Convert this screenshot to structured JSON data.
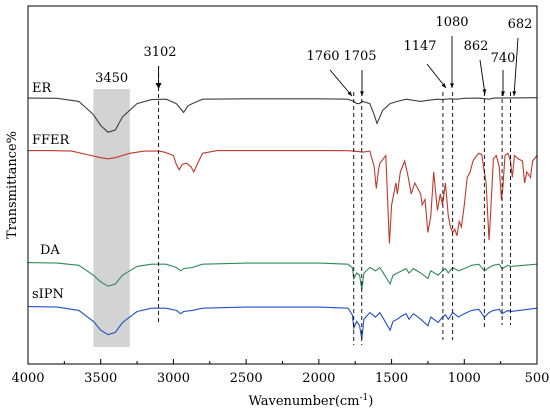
{
  "chart_data": {
    "type": "line",
    "title": "",
    "xlabel": "Wavenumber(cm",
    "xlabel_sup": "-1",
    "xlabel_end": ")",
    "ylabel": "Transmittance%",
    "xlim": [
      4000,
      500
    ],
    "x_reversed": true,
    "x_ticks": [
      "4000",
      "3500",
      "3000",
      "2500",
      "2000",
      "1500",
      "1000",
      "500"
    ],
    "grid": false,
    "legend": "none",
    "highlight_band": {
      "label": "3450",
      "x_range": [
        3550,
        3300
      ],
      "color": "#d3d3d3"
    },
    "peak_markers": [
      {
        "label": "3102",
        "x": 3102
      },
      {
        "label": "1760",
        "x": 1760
      },
      {
        "label": "1705",
        "x": 1705
      },
      {
        "label": "1147",
        "x": 1147
      },
      {
        "label": "1080",
        "x": 1080
      },
      {
        "label": "862",
        "x": 862
      },
      {
        "label": "740",
        "x": 740
      },
      {
        "label": "682",
        "x": 682
      }
    ],
    "series": [
      {
        "name": "ER",
        "color": "#3f3f3f",
        "baseline": 0.5,
        "points": [
          [
            4000,
            0.5
          ],
          [
            3800,
            0.6
          ],
          [
            3650,
            2
          ],
          [
            3550,
            8
          ],
          [
            3500,
            13
          ],
          [
            3450,
            16
          ],
          [
            3400,
            15
          ],
          [
            3350,
            9
          ],
          [
            3250,
            3
          ],
          [
            3150,
            1.2
          ],
          [
            3050,
            1
          ],
          [
            2980,
            3
          ],
          [
            2930,
            7
          ],
          [
            2900,
            4
          ],
          [
            2870,
            3
          ],
          [
            2800,
            1
          ],
          [
            2500,
            0.8
          ],
          [
            2000,
            0.8
          ],
          [
            1800,
            1
          ],
          [
            1760,
            2
          ],
          [
            1740,
            3
          ],
          [
            1720,
            3
          ],
          [
            1700,
            2
          ],
          [
            1650,
            3
          ],
          [
            1620,
            8
          ],
          [
            1600,
            12
          ],
          [
            1560,
            6
          ],
          [
            1510,
            3
          ],
          [
            1460,
            2
          ],
          [
            1400,
            1
          ],
          [
            1300,
            2
          ],
          [
            1250,
            1.5
          ],
          [
            1180,
            1
          ],
          [
            1150,
            1.2
          ],
          [
            1100,
            0.8
          ],
          [
            1050,
            1
          ],
          [
            1000,
            0.6
          ],
          [
            900,
            0.5
          ],
          [
            830,
            1
          ],
          [
            800,
            0.5
          ],
          [
            700,
            0.4
          ],
          [
            500,
            0.3
          ]
        ]
      },
      {
        "name": "FFER",
        "color": "#c0392b",
        "baseline": 0.5,
        "points": [
          [
            4000,
            0.5
          ],
          [
            3850,
            0.5
          ],
          [
            3700,
            1
          ],
          [
            3600,
            4
          ],
          [
            3500,
            7
          ],
          [
            3450,
            8
          ],
          [
            3400,
            7
          ],
          [
            3300,
            3
          ],
          [
            3200,
            1
          ],
          [
            3100,
            1
          ],
          [
            3060,
            2
          ],
          [
            3000,
            5
          ],
          [
            2980,
            13
          ],
          [
            2960,
            18
          ],
          [
            2940,
            13
          ],
          [
            2910,
            12
          ],
          [
            2880,
            15
          ],
          [
            2860,
            20
          ],
          [
            2840,
            14
          ],
          [
            2800,
            3
          ],
          [
            2700,
            0.5
          ],
          [
            2000,
            0.5
          ],
          [
            1800,
            0.6
          ],
          [
            1760,
            1
          ],
          [
            1720,
            1.5
          ],
          [
            1700,
            2
          ],
          [
            1650,
            1
          ],
          [
            1620,
            15
          ],
          [
            1605,
            35
          ],
          [
            1590,
            18
          ],
          [
            1580,
            12
          ],
          [
            1540,
            5
          ],
          [
            1515,
            85
          ],
          [
            1500,
            50
          ],
          [
            1470,
            30
          ],
          [
            1460,
            40
          ],
          [
            1440,
            20
          ],
          [
            1410,
            10
          ],
          [
            1385,
            25
          ],
          [
            1365,
            40
          ],
          [
            1340,
            30
          ],
          [
            1300,
            40
          ],
          [
            1290,
            50
          ],
          [
            1270,
            45
          ],
          [
            1250,
            75
          ],
          [
            1230,
            60
          ],
          [
            1210,
            20
          ],
          [
            1185,
            55
          ],
          [
            1165,
            40
          ],
          [
            1150,
            50
          ],
          [
            1130,
            30
          ],
          [
            1110,
            60
          ],
          [
            1095,
            70
          ],
          [
            1080,
            75
          ],
          [
            1065,
            72
          ],
          [
            1050,
            78
          ],
          [
            1035,
            65
          ],
          [
            1020,
            70
          ],
          [
            1000,
            50
          ],
          [
            980,
            25
          ],
          [
            960,
            20
          ],
          [
            940,
            10
          ],
          [
            920,
            6
          ],
          [
            900,
            3
          ],
          [
            880,
            4
          ],
          [
            862,
            20
          ],
          [
            850,
            30
          ],
          [
            830,
            82
          ],
          [
            820,
            60
          ],
          [
            800,
            8
          ],
          [
            780,
            5
          ],
          [
            760,
            15
          ],
          [
            745,
            45
          ],
          [
            735,
            35
          ],
          [
            720,
            5
          ],
          [
            700,
            3
          ],
          [
            682,
            10
          ],
          [
            670,
            25
          ],
          [
            655,
            5
          ],
          [
            630,
            8
          ],
          [
            600,
            10
          ],
          [
            585,
            30
          ],
          [
            570,
            20
          ],
          [
            545,
            25
          ],
          [
            530,
            10
          ],
          [
            500,
            5
          ]
        ]
      },
      {
        "name": "DA",
        "color": "#2e8b57",
        "baseline": 0.5,
        "points": [
          [
            4000,
            0.5
          ],
          [
            3800,
            1
          ],
          [
            3650,
            3
          ],
          [
            3550,
            12
          ],
          [
            3500,
            18
          ],
          [
            3450,
            22
          ],
          [
            3400,
            20
          ],
          [
            3350,
            12
          ],
          [
            3250,
            4
          ],
          [
            3150,
            2
          ],
          [
            3050,
            2
          ],
          [
            2980,
            5
          ],
          [
            2950,
            8
          ],
          [
            2930,
            6
          ],
          [
            2870,
            5
          ],
          [
            2800,
            2
          ],
          [
            2500,
            1
          ],
          [
            2000,
            1
          ],
          [
            1800,
            2
          ],
          [
            1770,
            5
          ],
          [
            1760,
            15
          ],
          [
            1740,
            10
          ],
          [
            1720,
            12
          ],
          [
            1705,
            25
          ],
          [
            1690,
            10
          ],
          [
            1650,
            5
          ],
          [
            1610,
            8
          ],
          [
            1580,
            5
          ],
          [
            1510,
            20
          ],
          [
            1490,
            12
          ],
          [
            1460,
            10
          ],
          [
            1430,
            8
          ],
          [
            1400,
            6
          ],
          [
            1380,
            10
          ],
          [
            1350,
            6
          ],
          [
            1300,
            10
          ],
          [
            1250,
            15
          ],
          [
            1230,
            8
          ],
          [
            1180,
            12
          ],
          [
            1150,
            8
          ],
          [
            1130,
            6
          ],
          [
            1110,
            10
          ],
          [
            1080,
            5
          ],
          [
            1040,
            8
          ],
          [
            1000,
            6
          ],
          [
            950,
            3
          ],
          [
            900,
            2
          ],
          [
            862,
            8
          ],
          [
            830,
            5
          ],
          [
            800,
            3
          ],
          [
            760,
            2
          ],
          [
            740,
            6
          ],
          [
            700,
            3
          ],
          [
            682,
            4
          ],
          [
            500,
            2
          ]
        ]
      },
      {
        "name": "sIPN",
        "color": "#2050c8",
        "baseline": 0.5,
        "points": [
          [
            4000,
            0.5
          ],
          [
            3800,
            1
          ],
          [
            3650,
            4
          ],
          [
            3550,
            14
          ],
          [
            3500,
            22
          ],
          [
            3450,
            26
          ],
          [
            3400,
            24
          ],
          [
            3350,
            15
          ],
          [
            3250,
            5
          ],
          [
            3150,
            2
          ],
          [
            3050,
            2
          ],
          [
            2980,
            4
          ],
          [
            2950,
            7
          ],
          [
            2930,
            5
          ],
          [
            2870,
            4
          ],
          [
            2800,
            2
          ],
          [
            2500,
            1
          ],
          [
            2000,
            1
          ],
          [
            1800,
            2
          ],
          [
            1770,
            8
          ],
          [
            1760,
            20
          ],
          [
            1740,
            14
          ],
          [
            1720,
            18
          ],
          [
            1705,
            30
          ],
          [
            1690,
            12
          ],
          [
            1650,
            6
          ],
          [
            1610,
            10
          ],
          [
            1580,
            6
          ],
          [
            1510,
            22
          ],
          [
            1490,
            14
          ],
          [
            1460,
            12
          ],
          [
            1430,
            9
          ],
          [
            1400,
            7
          ],
          [
            1380,
            12
          ],
          [
            1350,
            7
          ],
          [
            1300,
            12
          ],
          [
            1250,
            18
          ],
          [
            1230,
            10
          ],
          [
            1180,
            15
          ],
          [
            1150,
            10
          ],
          [
            1130,
            8
          ],
          [
            1110,
            12
          ],
          [
            1080,
            6
          ],
          [
            1040,
            10
          ],
          [
            1000,
            7
          ],
          [
            950,
            4
          ],
          [
            900,
            3
          ],
          [
            862,
            10
          ],
          [
            830,
            6
          ],
          [
            800,
            4
          ],
          [
            760,
            3
          ],
          [
            740,
            7
          ],
          [
            700,
            4
          ],
          [
            682,
            5
          ],
          [
            500,
            2
          ]
        ]
      }
    ]
  }
}
